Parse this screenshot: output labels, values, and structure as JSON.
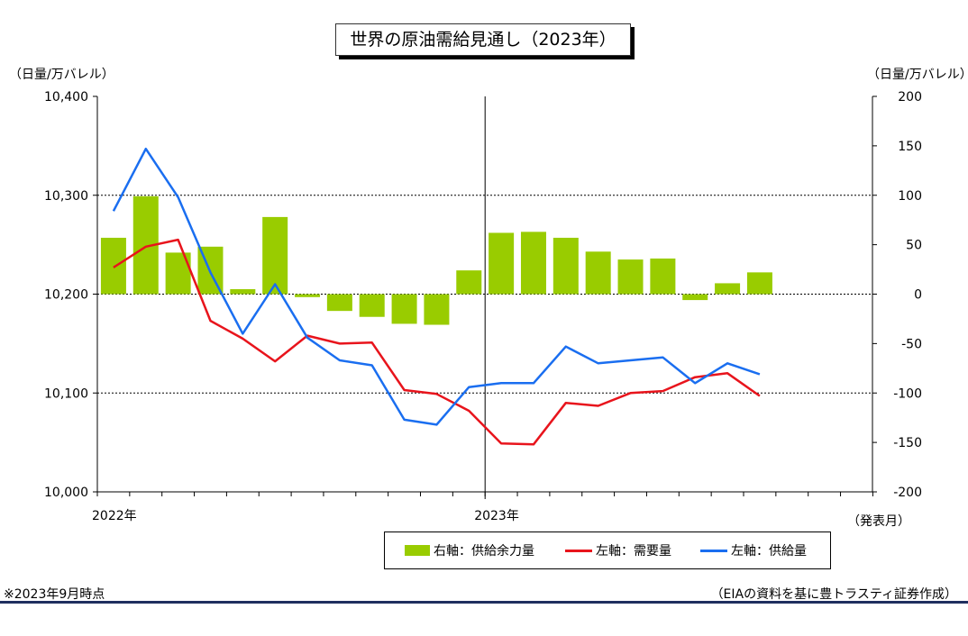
{
  "title": "世界の原油需給見通し（2023年）",
  "unit_left": "（日量/万バレル）",
  "unit_right": "（日量/万バレル）",
  "x_axis_note": "（発表月）",
  "legend": {
    "bar": "右軸：供給余力量",
    "demand": "左軸：需要量",
    "supply": "左軸：供給量"
  },
  "footnote": "※2023年9月時点",
  "source": "（EIAの資料を基に豊トラスティ証券作成）",
  "colors": {
    "bar": "#99cc00",
    "demand": "#e8141c",
    "supply": "#1a6ef0"
  },
  "chart_data": {
    "type": "bar",
    "x_labels": [
      "2022年",
      "2023年"
    ],
    "left_axis": {
      "ylim": [
        10000,
        10400
      ],
      "ticks": [
        "10,000",
        "10,100",
        "10,200",
        "10,300",
        "10,400"
      ]
    },
    "right_axis": {
      "ylim": [
        -200,
        200
      ],
      "ticks": [
        "-200",
        "-150",
        "-100",
        "-50",
        "0",
        "50",
        "100",
        "150",
        "200"
      ]
    },
    "series": [
      {
        "name": "右軸：供給余力量",
        "axis": "right",
        "type": "bar",
        "values": [
          57,
          99,
          42,
          48,
          5,
          78,
          -3,
          -17,
          -23,
          -30,
          -31,
          24,
          62,
          63,
          57,
          43,
          35,
          36,
          -6,
          11,
          22
        ]
      },
      {
        "name": "左軸：需要量",
        "axis": "left",
        "type": "line",
        "values": [
          10227,
          10248,
          10255,
          10173,
          10155,
          10132,
          10158,
          10150,
          10151,
          10103,
          10099,
          10082,
          10049,
          10048,
          10090,
          10087,
          10100,
          10102,
          10116,
          10120,
          10097
        ]
      },
      {
        "name": "左軸：供給量",
        "axis": "left",
        "type": "line",
        "values": [
          10284,
          10347,
          10298,
          10222,
          10160,
          10210,
          10156,
          10133,
          10128,
          10073,
          10068,
          10106,
          10110,
          10110,
          10147,
          10130,
          10133,
          10136,
          10110,
          10130,
          10119
        ]
      }
    ],
    "grid": true
  }
}
